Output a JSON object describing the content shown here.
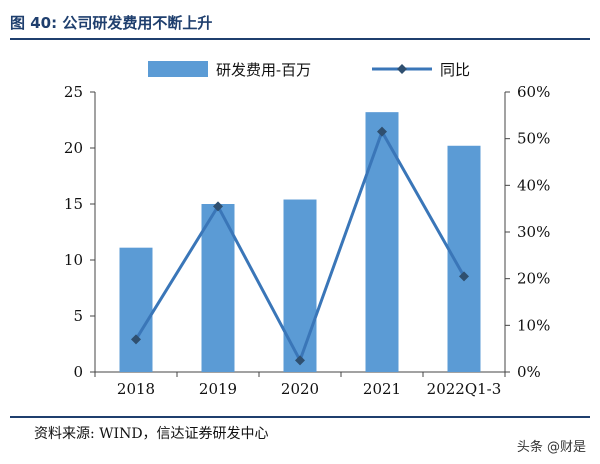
{
  "header": {
    "title": "图 40: 公司研发费用不断上升"
  },
  "footer": {
    "source": "资料来源: WIND，信达证券研发中心",
    "watermark": "头条 @财是"
  },
  "colors": {
    "bar": "#5b9bd5",
    "line": "#3a76b8",
    "marker": "#2f4f6f",
    "header": "#1f3f6e"
  },
  "chart_data": {
    "type": "bar",
    "title": "",
    "categories": [
      "2018",
      "2019",
      "2020",
      "2021",
      "2022Q1-3"
    ],
    "series": [
      {
        "name": "研发费用-百万",
        "type": "bar",
        "axis": "left",
        "values": [
          11.1,
          15.0,
          15.4,
          23.2,
          20.2
        ]
      },
      {
        "name": "同比",
        "type": "line",
        "axis": "right",
        "values": [
          0.07,
          0.355,
          0.025,
          0.515,
          0.205
        ]
      }
    ],
    "y_left": {
      "min": 0,
      "max": 25,
      "ticks": [
        "0",
        "5",
        "10",
        "15",
        "20",
        "25"
      ]
    },
    "y_right": {
      "min": 0,
      "max": 0.6,
      "ticks": [
        "0%",
        "10%",
        "20%",
        "30%",
        "40%",
        "50%",
        "60%"
      ]
    },
    "grid": false,
    "legend_position": "top"
  }
}
